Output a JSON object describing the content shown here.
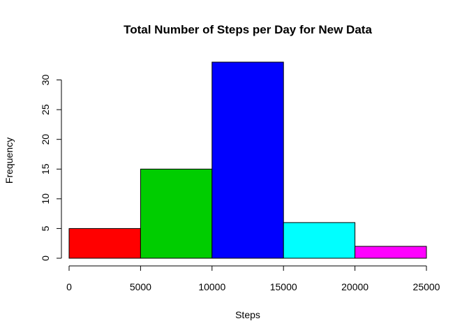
{
  "chart_data": {
    "type": "bar",
    "title": "Total Number of Steps per Day for New Data",
    "xlabel": "Steps",
    "ylabel": "Frequency",
    "bins": [
      {
        "from": 0,
        "to": 5000,
        "value": 5,
        "color": "#FF0000"
      },
      {
        "from": 5000,
        "to": 10000,
        "value": 15,
        "color": "#00CD00"
      },
      {
        "from": 10000,
        "to": 15000,
        "value": 33,
        "color": "#0000FF"
      },
      {
        "from": 15000,
        "to": 20000,
        "value": 6,
        "color": "#00FFFF"
      },
      {
        "from": 20000,
        "to": 25000,
        "value": 2,
        "color": "#FF00FF"
      }
    ],
    "xticks": [
      "0",
      "5000",
      "10000",
      "15000",
      "20000",
      "25000"
    ],
    "xtick_values": [
      0,
      5000,
      10000,
      15000,
      20000,
      25000
    ],
    "yticks": [
      "0",
      "5",
      "10",
      "15",
      "20",
      "25",
      "30"
    ],
    "ytick_values": [
      0,
      5,
      10,
      15,
      20,
      25,
      30
    ],
    "xlim": [
      0,
      25000
    ],
    "ylim": [
      0,
      33
    ],
    "grid": false,
    "legend": "none"
  }
}
